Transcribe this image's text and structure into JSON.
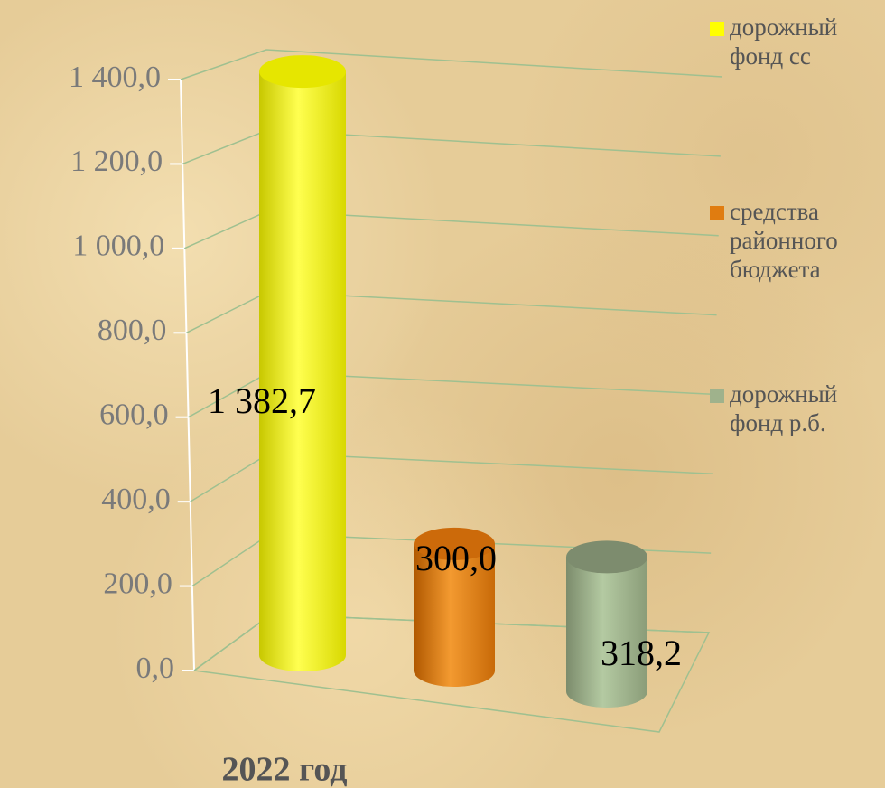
{
  "chart_data": {
    "type": "bar3d",
    "categories": [
      "2022 год"
    ],
    "series": [
      {
        "name": "дорожный фонд сс",
        "color": "#ffff00",
        "values": [
          1382.7
        ],
        "value_labels": [
          "1 382,7"
        ]
      },
      {
        "name": "средства районного бюджета",
        "color": "#e07c10",
        "values": [
          300.0
        ],
        "value_labels": [
          "300,0"
        ]
      },
      {
        "name": "дорожный фонд р.б.",
        "color": "#9fb28c",
        "values": [
          318.2
        ],
        "value_labels": [
          "318,2"
        ]
      }
    ],
    "ylim": [
      0,
      1400
    ],
    "yticks": [
      {
        "value": 0,
        "label": "0,0"
      },
      {
        "value": 200,
        "label": "200,0"
      },
      {
        "value": 400,
        "label": "400,0"
      },
      {
        "value": 600,
        "label": "600,0"
      },
      {
        "value": 800,
        "label": "800,0"
      },
      {
        "value": 1000,
        "label": "1 000,0"
      },
      {
        "value": 1200,
        "label": "1 200,0"
      },
      {
        "value": 1400,
        "label": "1 400,0"
      }
    ],
    "grid": true,
    "legend": "right"
  }
}
